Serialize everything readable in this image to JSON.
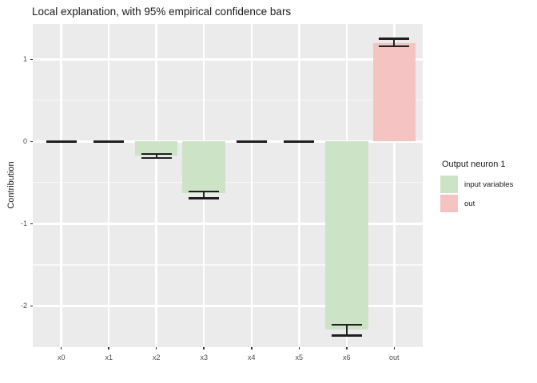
{
  "chart_data": {
    "type": "bar",
    "title": "Local explanation, with 95% empirical confidence bars",
    "xlabel": "",
    "ylabel": "Contribution",
    "categories": [
      "x0",
      "x1",
      "x2",
      "x3",
      "x4",
      "x5",
      "x6",
      "out"
    ],
    "values": [
      0,
      0,
      -0.17,
      -0.63,
      0,
      0,
      -2.29,
      1.2
    ],
    "ci_low": [
      0,
      0,
      -0.2,
      -0.69,
      0,
      0,
      -2.36,
      1.16
    ],
    "ci_high": [
      0,
      0,
      -0.15,
      -0.61,
      0,
      0,
      -2.23,
      1.25
    ],
    "groups": [
      "input variables",
      "input variables",
      "input variables",
      "input variables",
      "input variables",
      "input variables",
      "input variables",
      "out"
    ],
    "ylim": [
      -2.5,
      1.43
    ],
    "yticks": [
      1,
      0,
      -1,
      -2
    ],
    "yminor": [
      0.5,
      -0.5,
      -1.5
    ],
    "grid": "on",
    "legend_position": "right",
    "legend": {
      "title": "Output neuron 1",
      "entries": [
        {
          "label": "input variables",
          "color": "#cde3c6"
        },
        {
          "label": "out",
          "color": "#f6c3c3"
        }
      ]
    },
    "colors": {
      "input variables": "#cde3c6",
      "out": "#f6c3c3",
      "panel_bg": "#ebebeb",
      "gridline": "#ffffff",
      "errorbar": "#1f1f1f"
    }
  }
}
